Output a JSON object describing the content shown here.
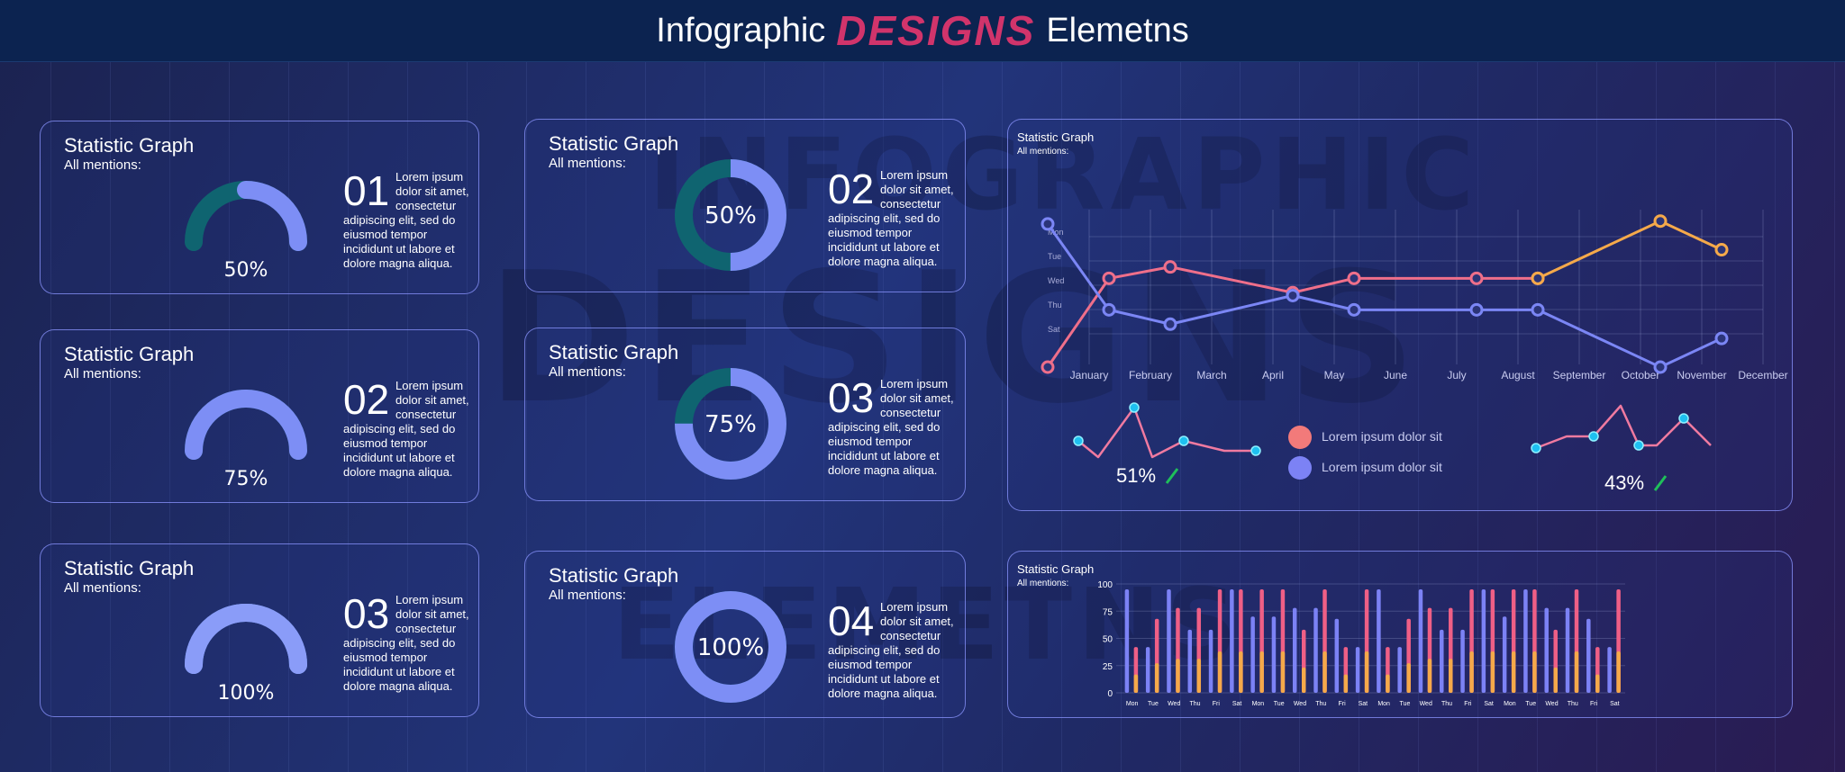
{
  "header": {
    "title_left": "Infographic",
    "title_mid": "DESIGNS",
    "title_right": "Elemetns"
  },
  "watermark": {
    "line1": "INFOGRAPHIC",
    "line2": "DESIGNS",
    "line3": "ELEMETNS"
  },
  "gauges": [
    {
      "title": "Statistic Graph",
      "sub": "All mentions:",
      "num": "01",
      "pct_label": "50%",
      "value": 0.5,
      "type": "arc",
      "desc_head": "Lorem ipsum dolor sit amet, consectetur",
      "desc_body": "adipiscing elit, sed do eiusmod tempor incididunt ut labore et dolore magna aliqua."
    },
    {
      "title": "Statistic Graph",
      "sub": "All mentions:",
      "num": "02",
      "pct_label": "75%",
      "value": 0.75,
      "type": "arc",
      "desc_head": "Lorem ipsum dolor sit amet, consectetur",
      "desc_body": "adipiscing elit, sed do eiusmod tempor incididunt ut labore et dolore magna aliqua."
    },
    {
      "title": "Statistic Graph",
      "sub": "All mentions:",
      "num": "03",
      "pct_label": "100%",
      "value": 1.0,
      "type": "arc",
      "desc_head": "Lorem ipsum dolor sit amet, consectetur",
      "desc_body": "adipiscing elit, sed do eiusmod tempor incididunt ut labore et dolore magna aliqua."
    },
    {
      "title": "Statistic Graph",
      "sub": "All mentions:",
      "num": "02",
      "pct_label": "50%",
      "value": 0.5,
      "type": "ring",
      "desc_head": "Lorem ipsum dolor sit amet, consectetur",
      "desc_body": "adipiscing elit, sed do eiusmod tempor incididunt ut labore et dolore magna aliqua."
    },
    {
      "title": "Statistic Graph",
      "sub": "All mentions:",
      "num": "03",
      "pct_label": "75%",
      "value": 0.75,
      "type": "ring",
      "desc_head": "Lorem ipsum dolor sit amet, consectetur",
      "desc_body": "adipiscing elit, sed do eiusmod tempor incididunt ut labore et dolore magna aliqua."
    },
    {
      "title": "Statistic Graph",
      "sub": "All mentions:",
      "num": "04",
      "pct_label": "100%",
      "value": 1.0,
      "type": "ring",
      "desc_head": "Lorem ipsum dolor sit amet, consectetur",
      "desc_body": "adipiscing elit, sed do eiusmod tempor incididunt ut labore et dolore magna aliqua."
    }
  ],
  "line_panel": {
    "title": "Statistic Graph",
    "sub": "All mentions:",
    "legend": [
      {
        "label": "Lorem ipsum dolor sit",
        "color": "#f27a7a"
      },
      {
        "label": "Lorem ipsum dolor sit",
        "color": "#7c82f5"
      }
    ],
    "spark_left_label": "51%",
    "spark_right_label": "43%"
  },
  "bar_panel": {
    "title": "Statistic Graph",
    "sub": "All mentions:"
  },
  "chart_data": [
    {
      "type": "line",
      "title": "Statistic Graph",
      "x": [
        "January",
        "February",
        "March",
        "April",
        "May",
        "June",
        "July",
        "August",
        "September",
        "October",
        "November",
        "December"
      ],
      "y_ticks": [
        "Mon",
        "Tue",
        "Wed",
        "Thu",
        "Sat"
      ],
      "series": [
        {
          "color": "#ef6f8a",
          "points": [
            [
              1,
              0.0
            ],
            [
              2,
              3.1
            ],
            [
              3,
              3.5
            ],
            [
              5,
              2.6
            ],
            [
              6,
              3.1
            ],
            [
              8,
              3.1
            ],
            [
              9,
              3.1
            ]
          ]
        },
        {
          "color": "#f5a94a",
          "points": [
            [
              9,
              3.1
            ],
            [
              11,
              5.1
            ],
            [
              12,
              4.1
            ]
          ]
        },
        {
          "color": "#7b86f5",
          "points": [
            [
              1,
              5.0
            ],
            [
              2,
              2.0
            ],
            [
              3,
              1.5
            ],
            [
              5,
              2.5
            ],
            [
              6,
              2.0
            ],
            [
              8,
              2.0
            ],
            [
              9,
              2.0
            ],
            [
              11,
              0.0
            ],
            [
              12,
              1.0
            ]
          ]
        }
      ]
    },
    {
      "type": "bar",
      "title": "Statistic Graph",
      "categories": [
        "Mon",
        "Tue",
        "Wed",
        "Thu",
        "Fri",
        "Sat",
        "Mon",
        "Tue",
        "Wed",
        "Thu",
        "Fri",
        "Sat",
        "Mon",
        "Tue",
        "Wed",
        "Thu",
        "Fri",
        "Sat",
        "Mon",
        "Tue",
        "Wed",
        "Thu",
        "Fri",
        "Sat"
      ],
      "ylim": [
        0,
        100
      ],
      "yticks": [
        0,
        25,
        50,
        75,
        100
      ],
      "series": [
        {
          "color": "#7c82f5",
          "values": [
            95,
            42,
            95,
            58,
            58,
            95,
            70,
            70,
            78,
            78,
            68,
            42,
            95,
            42,
            95,
            58,
            58,
            95,
            70,
            95,
            78,
            78,
            68,
            42
          ]
        },
        {
          "color": "#f5a94a",
          "values": [
            42,
            68,
            78,
            78,
            95,
            95,
            95,
            95,
            58,
            95,
            42,
            95,
            42,
            68,
            78,
            78,
            95,
            95,
            95,
            95,
            58,
            95,
            42,
            95
          ]
        },
        {
          "color": "#ef5f86",
          "values": [
            42,
            68,
            78,
            78,
            95,
            95,
            95,
            95,
            58,
            95,
            42,
            95,
            42,
            68,
            78,
            78,
            95,
            95,
            95,
            95,
            58,
            95,
            42,
            95
          ]
        }
      ]
    }
  ]
}
